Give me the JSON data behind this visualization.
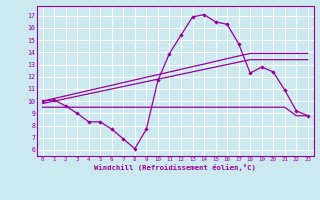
{
  "xlabel": "Windchill (Refroidissement éolien,°C)",
  "x_hours": [
    0,
    1,
    2,
    3,
    4,
    5,
    6,
    7,
    8,
    9,
    10,
    11,
    12,
    13,
    14,
    15,
    16,
    17,
    18,
    19,
    20,
    21,
    22,
    23
  ],
  "windchill": [
    10.0,
    10.1,
    9.6,
    9.0,
    8.3,
    8.3,
    7.7,
    6.9,
    6.1,
    7.7,
    11.7,
    13.9,
    15.4,
    16.9,
    17.1,
    16.5,
    16.3,
    14.7,
    12.3,
    12.8,
    12.4,
    10.9,
    9.2,
    8.8
  ],
  "line_upper": [
    10.0,
    10.22,
    10.43,
    10.65,
    10.87,
    11.09,
    11.3,
    11.52,
    11.74,
    11.96,
    12.17,
    12.39,
    12.61,
    12.83,
    13.04,
    13.26,
    13.48,
    13.7,
    13.91,
    13.91,
    13.91,
    13.91,
    13.91,
    13.91
  ],
  "line_mid": [
    9.8,
    10.0,
    10.2,
    10.4,
    10.6,
    10.8,
    11.0,
    11.2,
    11.4,
    11.6,
    11.8,
    12.0,
    12.2,
    12.4,
    12.6,
    12.8,
    13.0,
    13.2,
    13.4,
    13.4,
    13.4,
    13.4,
    13.4,
    13.4
  ],
  "line_flat": [
    9.5,
    9.5,
    9.5,
    9.5,
    9.5,
    9.5,
    9.5,
    9.5,
    9.5,
    9.5,
    9.5,
    9.5,
    9.5,
    9.5,
    9.5,
    9.5,
    9.5,
    9.5,
    9.5,
    9.5,
    9.5,
    9.5,
    8.8,
    8.8
  ],
  "color": "#990099",
  "bg_color": "#cce9f0",
  "grid_color": "#ffffff",
  "ylim": [
    5.5,
    17.8
  ],
  "xlim": [
    -0.5,
    23.5
  ]
}
